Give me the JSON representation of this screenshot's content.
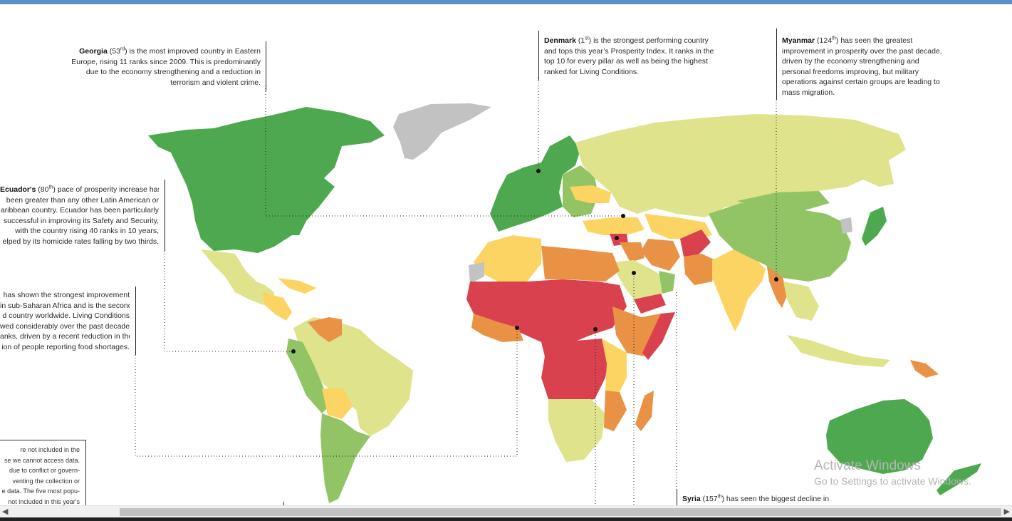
{
  "colors": {
    "very_high": "#4ea84f",
    "high": "#92c465",
    "upper_mid": "#dfe38c",
    "lower_mid": "#fcd463",
    "low": "#e99245",
    "very_low": "#d9414f",
    "no_data": "#c2c2c2",
    "highlight_marker": "#111111"
  },
  "annotations": {
    "georgia": {
      "name": "Georgia",
      "rank": "53",
      "suffix": "rd",
      "text": "is the most improved country in Eastern Europe, rising 11 ranks since 2009. This is predominantly due to the economy strengthening and a reduction in terrorism and violent crime."
    },
    "denmark": {
      "name": "Denmark",
      "rank": "1",
      "suffix": "st",
      "text": "is the strongest performing country and tops this year’s Prosperity Index. It ranks in the top 10 for every pillar as well as being the highest ranked for Living Conditions."
    },
    "myanmar": {
      "name": "Myanmar",
      "rank": "124",
      "suffix": "th",
      "text": "has seen the greatest improvement in prosperity over the past decade, driven by the economy strengthening and personal freedoms improving, but military operations against certain groups are leading to mass migration."
    },
    "ecuador": {
      "name": "Ecuador's",
      "rank": "80",
      "suffix": "th",
      "lines": [
        "pace of prosperity increase has",
        "been greater than any other Latin American or",
        "aribbean country. Ecuador has been particularly",
        "successful in improving its Safety and Security,",
        "with the country rising 40 ranks in 10 years,",
        "elped by its homicide rates falling by two thirds."
      ]
    },
    "subsaharan": {
      "lines": [
        "has shown the strongest improvement",
        "in sub-Saharan Africa and is the second",
        "d country worldwide. Living Conditions",
        "wed considerably over the past decade,",
        "anks, driven by a recent reduction in the",
        "ion of people reporting food shortages."
      ]
    },
    "syria": {
      "name": "Syria",
      "rank": "157",
      "suffix": "th",
      "text": "has seen the biggest decline in"
    }
  },
  "legend_note": {
    "lines": [
      "re not included in the",
      "se we cannot access data.",
      "due to conflict or govern-",
      "venting the collection or",
      "e data. The five most popu-",
      "not included in this year's"
    ]
  },
  "watermark": {
    "title": "Activate Windows",
    "subtitle": "Go to Settings to activate Windows."
  },
  "scrollbar": {
    "left_arrow": "◀",
    "right_arrow": "▶"
  }
}
